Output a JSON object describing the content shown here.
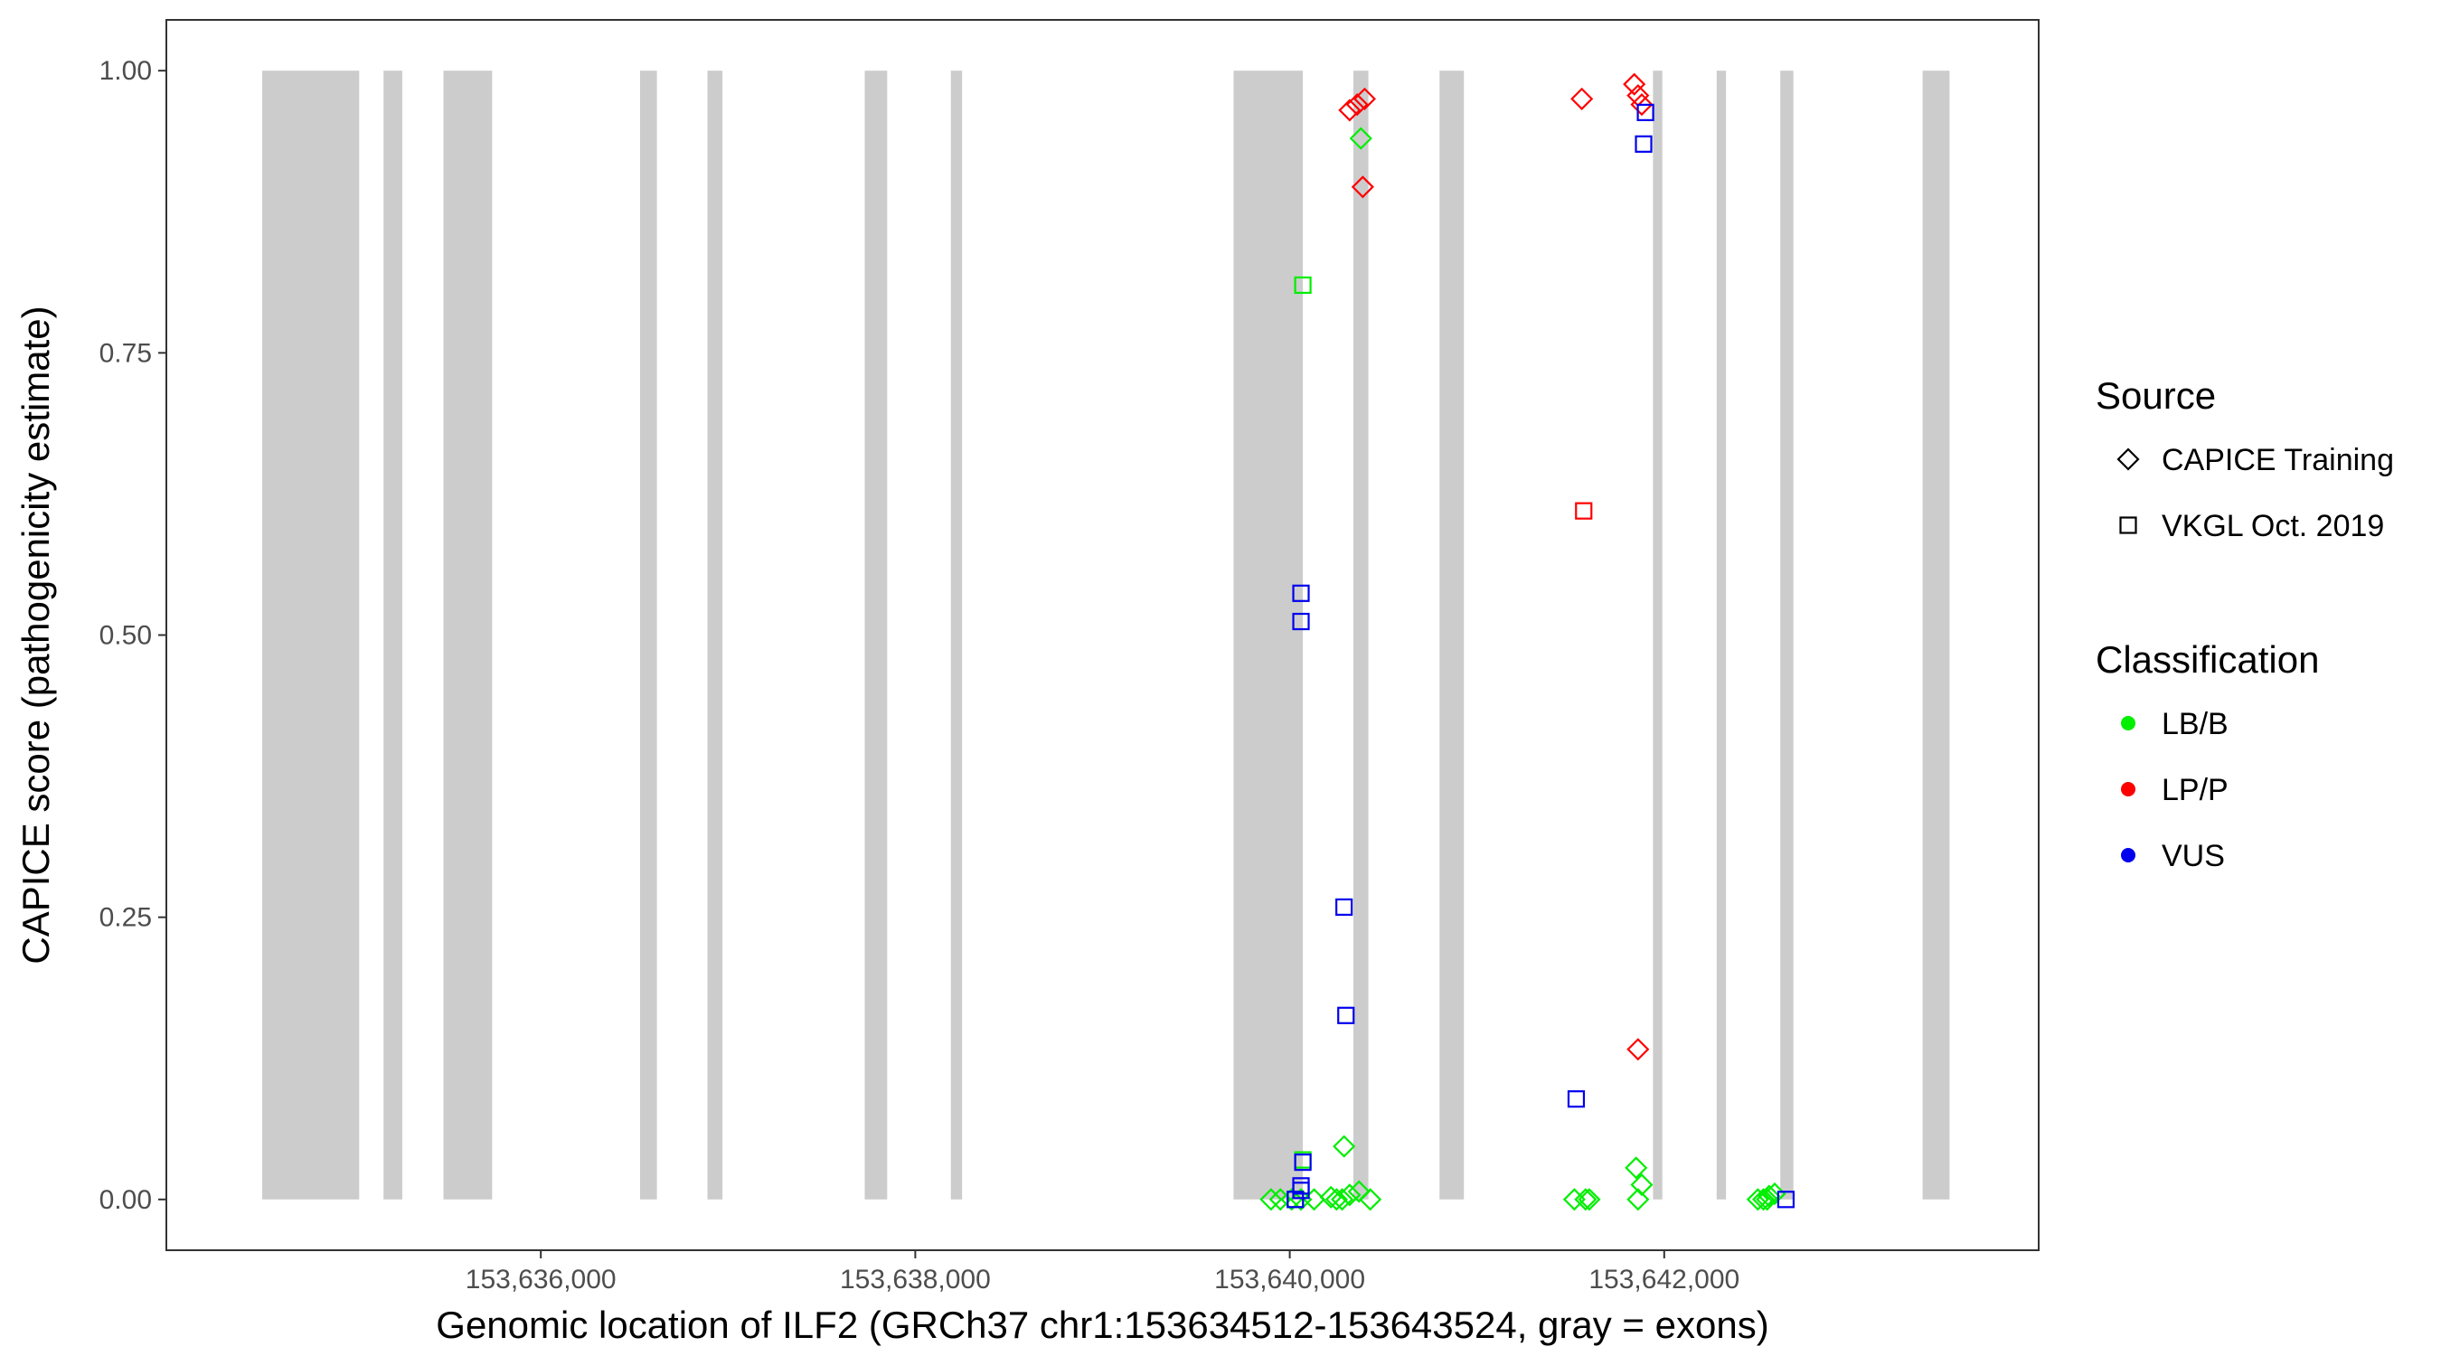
{
  "chart_data": {
    "type": "scatter",
    "xlabel": "Genomic location of ILF2 (GRCh37 chr1:153634512-153643524, gray = exons)",
    "ylabel": "CAPICE score (pathogenicity estimate)",
    "xlim": [
      153634000,
      153644000
    ],
    "ylim": [
      -0.045,
      1.045
    ],
    "x_ticks": [
      {
        "value": 153636000,
        "label": "153,636,000"
      },
      {
        "value": 153638000,
        "label": "153,638,000"
      },
      {
        "value": 153640000,
        "label": "153,640,000"
      },
      {
        "value": 153642000,
        "label": "153,642,000"
      }
    ],
    "y_ticks": [
      {
        "value": 0.0,
        "label": "0.00"
      },
      {
        "value": 0.25,
        "label": "0.25"
      },
      {
        "value": 0.5,
        "label": "0.50"
      },
      {
        "value": 0.75,
        "label": "0.75"
      },
      {
        "value": 1.0,
        "label": "1.00"
      }
    ],
    "grid": false,
    "exons": [
      [
        153634512,
        153635030
      ],
      [
        153635160,
        153635260
      ],
      [
        153635480,
        153635740
      ],
      [
        153636530,
        153636620
      ],
      [
        153636890,
        153636970
      ],
      [
        153637730,
        153637850
      ],
      [
        153638190,
        153638250
      ],
      [
        153639700,
        153640070
      ],
      [
        153640340,
        153640420
      ],
      [
        153640800,
        153640930
      ],
      [
        153641940,
        153641990
      ],
      [
        153642280,
        153642330
      ],
      [
        153642620,
        153642690
      ],
      [
        153643380,
        153643524
      ]
    ],
    "legend_position": "right",
    "legend": {
      "source": {
        "title": "Source",
        "items": [
          {
            "label": "CAPICE Training",
            "shape": "diamond"
          },
          {
            "label": "VKGL Oct. 2019",
            "shape": "square"
          }
        ]
      },
      "classification": {
        "title": "Classification",
        "items": [
          {
            "label": "LB/B",
            "color": "#00ee00"
          },
          {
            "label": "LP/P",
            "color": "#ff0000"
          },
          {
            "label": "VUS",
            "color": "#0000ee"
          }
        ]
      }
    },
    "series": [
      {
        "source": "CAPICE Training",
        "classification": "LB/B",
        "shape": "diamond",
        "color": "#00ee00",
        "points": [
          [
            153640380,
            0.94
          ],
          [
            153640290,
            0.047
          ],
          [
            153639900,
            0.0
          ],
          [
            153639950,
            0.0
          ],
          [
            153640010,
            0.0
          ],
          [
            153640060,
            0.0
          ],
          [
            153640130,
            0.0
          ],
          [
            153640220,
            0.002
          ],
          [
            153640280,
            0.0
          ],
          [
            153640320,
            0.004
          ],
          [
            153640370,
            0.007
          ],
          [
            153640430,
            0.0
          ],
          [
            153640250,
            0.0
          ],
          [
            153641520,
            0.0
          ],
          [
            153641580,
            0.0
          ],
          [
            153641600,
            0.0
          ],
          [
            153641850,
            0.028
          ],
          [
            153641880,
            0.013
          ],
          [
            153641860,
            0.0
          ],
          [
            153642500,
            0.0
          ],
          [
            153642530,
            0.0
          ],
          [
            153642560,
            0.003
          ],
          [
            153642590,
            0.005
          ],
          [
            153642550,
            0.0
          ]
        ]
      },
      {
        "source": "CAPICE Training",
        "classification": "LP/P",
        "shape": "diamond",
        "color": "#ff0000",
        "points": [
          [
            153640320,
            0.965
          ],
          [
            153640360,
            0.97
          ],
          [
            153640400,
            0.975
          ],
          [
            153640390,
            0.897
          ],
          [
            153641560,
            0.975
          ],
          [
            153641840,
            0.988
          ],
          [
            153641860,
            0.978
          ],
          [
            153641880,
            0.97
          ],
          [
            153641860,
            0.133
          ]
        ]
      },
      {
        "source": "VKGL Oct. 2019",
        "classification": "LB/B",
        "shape": "square",
        "color": "#00ee00",
        "points": [
          [
            153640070,
            0.81
          ],
          [
            153640070,
            0.035
          ],
          [
            153640030,
            0.0
          ]
        ]
      },
      {
        "source": "VKGL Oct. 2019",
        "classification": "LP/P",
        "shape": "square",
        "color": "#ff0000",
        "points": [
          [
            153641570,
            0.61
          ]
        ]
      },
      {
        "source": "VKGL Oct. 2019",
        "classification": "VUS",
        "shape": "square",
        "color": "#0000ee",
        "points": [
          [
            153641900,
            0.963
          ],
          [
            153641890,
            0.935
          ],
          [
            153640060,
            0.537
          ],
          [
            153640060,
            0.512
          ],
          [
            153640290,
            0.259
          ],
          [
            153640300,
            0.163
          ],
          [
            153641530,
            0.089
          ],
          [
            153640070,
            0.033
          ],
          [
            153640060,
            0.012
          ],
          [
            153640060,
            0.008
          ],
          [
            153640030,
            0.0
          ],
          [
            153642650,
            0.0
          ]
        ]
      }
    ]
  }
}
